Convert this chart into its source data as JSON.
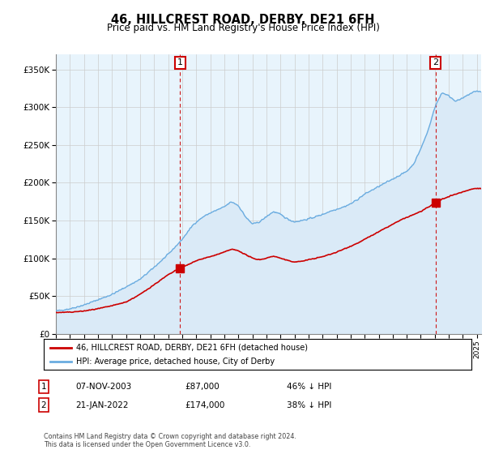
{
  "title": "46, HILLCREST ROAD, DERBY, DE21 6FH",
  "subtitle": "Price paid vs. HM Land Registry's House Price Index (HPI)",
  "legend_line1": "46, HILLCREST ROAD, DERBY, DE21 6FH (detached house)",
  "legend_line2": "HPI: Average price, detached house, City of Derby",
  "annotation1_date": "07-NOV-2003",
  "annotation1_price": "£87,000",
  "annotation1_hpi": "46% ↓ HPI",
  "annotation2_date": "21-JAN-2022",
  "annotation2_price": "£174,000",
  "annotation2_hpi": "38% ↓ HPI",
  "footnote": "Contains HM Land Registry data © Crown copyright and database right 2024.\nThis data is licensed under the Open Government Licence v3.0.",
  "hpi_color": "#6aace0",
  "hpi_fill_color": "#daeaf7",
  "price_color": "#cc0000",
  "ylim": [
    0,
    370000
  ],
  "yticks": [
    0,
    50000,
    100000,
    150000,
    200000,
    250000,
    300000,
    350000
  ],
  "sale1_x": 2003.85,
  "sale1_y": 87000,
  "sale2_x": 2022.05,
  "sale2_y": 174000,
  "xmin": 1995,
  "xmax": 2025.3,
  "grid_color": "#cccccc",
  "axis_bg_color": "#e8f4fc"
}
